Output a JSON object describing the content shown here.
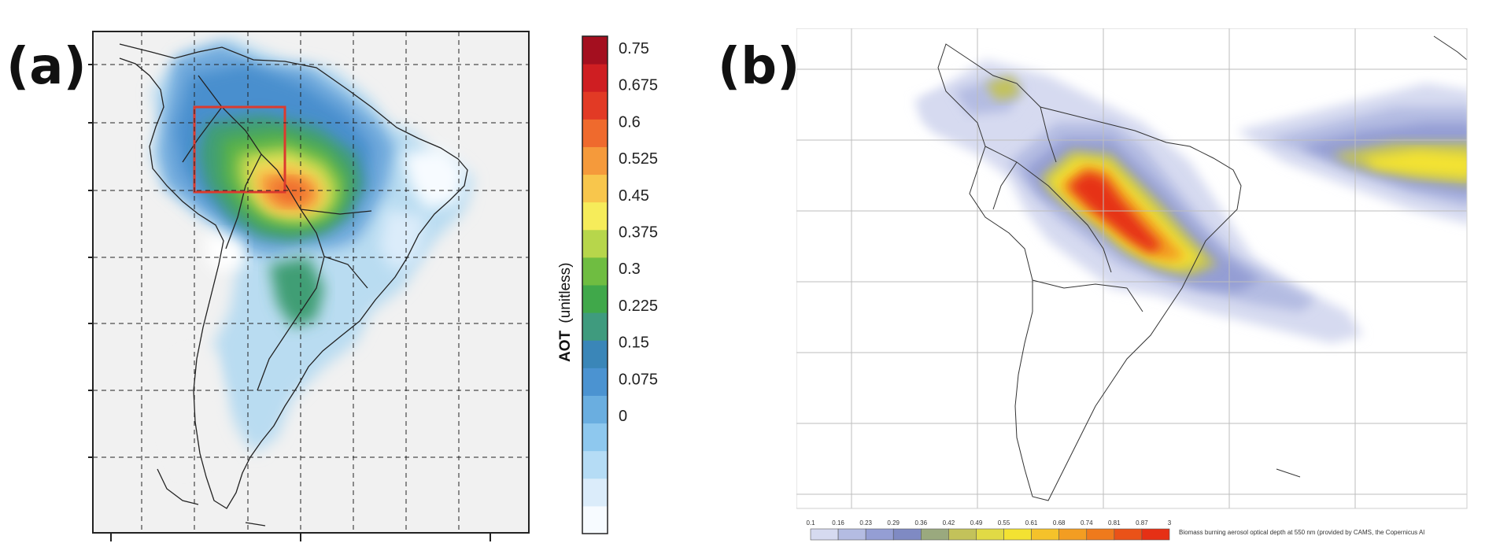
{
  "panels": {
    "a": {
      "label": "(a)",
      "colorbar": {
        "title": "AOT",
        "title_unit": "(unitless)",
        "ticks": [
          "0.75",
          "0.675",
          "0.6",
          "0.525",
          "0.45",
          "0.375",
          "0.3",
          "0.225",
          "0.15",
          "0.075",
          "0"
        ],
        "colors": [
          "#f7fbff",
          "#dbecfa",
          "#b5dcf5",
          "#8ec8ee",
          "#6aaee0",
          "#4b93d1",
          "#3a86b8",
          "#3f9b7e",
          "#40a84a",
          "#6fbd41",
          "#b7d64b",
          "#f6ec5a",
          "#f8c64c",
          "#f59a3b",
          "#ef6a2d",
          "#e23a25",
          "#cf1e22",
          "#a40f1f"
        ]
      },
      "highlight_box_color": "#dc3a2e"
    },
    "b": {
      "label": "(b)",
      "colorbar": {
        "ticks": [
          "0.1",
          "0.16",
          "0.23",
          "0.29",
          "0.36",
          "0.42",
          "0.49",
          "0.55",
          "0.61",
          "0.68",
          "0.74",
          "0.81",
          "0.87",
          "3"
        ],
        "colors": [
          "#d6daf0",
          "#b4bce2",
          "#949ed4",
          "#7f8ac3",
          "#9aa97e",
          "#c3c25a",
          "#e1da45",
          "#f3e232",
          "#f5c22a",
          "#f39d22",
          "#ef7a1c",
          "#ea5218",
          "#e63015"
        ],
        "caption": "Biomass burning aerosol optical depth at 550 nm (provided by CAMS, the Copernicus Al"
      }
    }
  }
}
